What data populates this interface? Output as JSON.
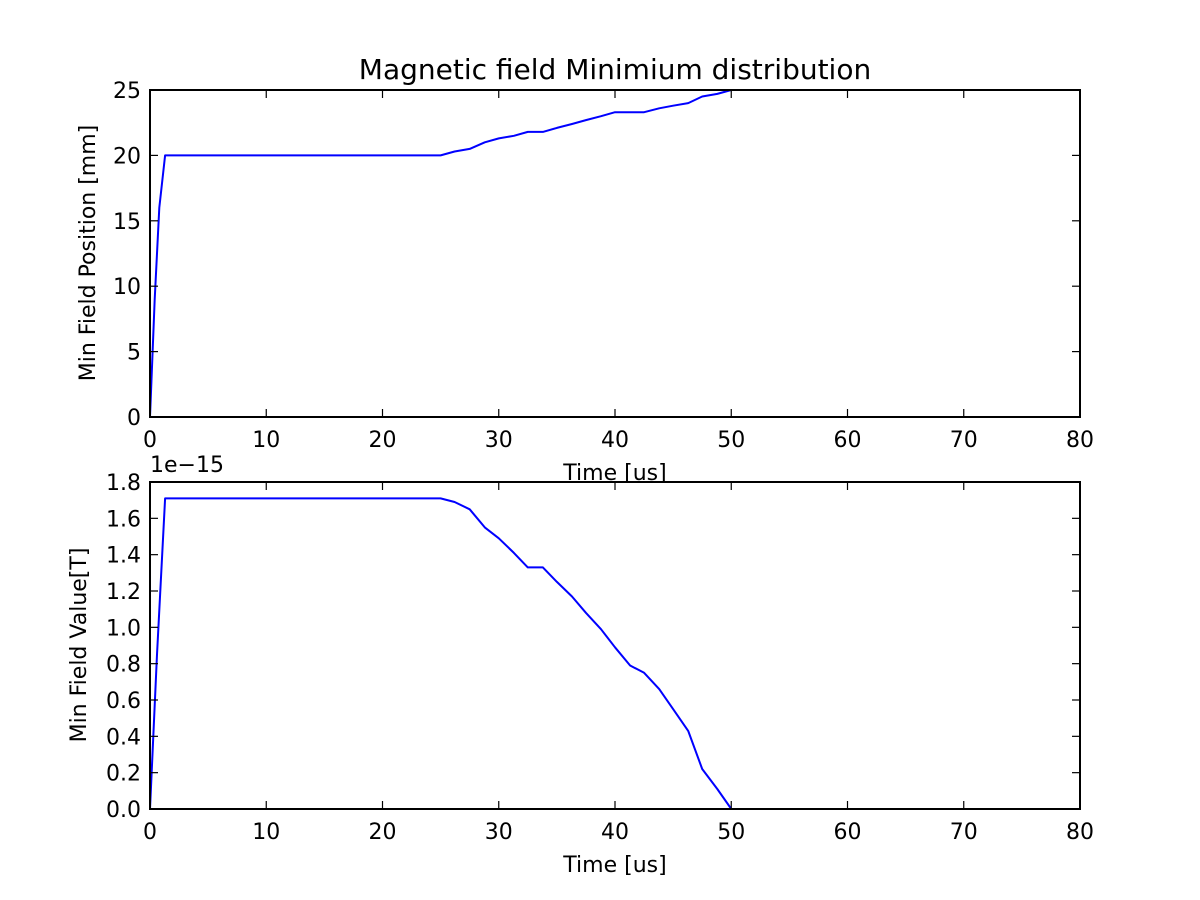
{
  "figure": {
    "title": "Magnetic field Minimium distribution"
  },
  "chart_data": [
    {
      "type": "line",
      "title": "Magnetic field Minimium distribution",
      "xlabel": "Time [us]",
      "ylabel": "Min Field Position [mm]",
      "xlim": [
        0,
        80
      ],
      "ylim": [
        0,
        25
      ],
      "xticks": [
        "0",
        "10",
        "20",
        "30",
        "40",
        "50",
        "60",
        "70",
        "80"
      ],
      "yticks": [
        "0",
        "5",
        "10",
        "15",
        "20",
        "25"
      ],
      "offset_text": "",
      "grid": false,
      "color": "#0000ff",
      "series": [
        {
          "x": [
            0,
            0.4,
            0.8,
            1.3,
            25.0,
            26.2,
            27.5,
            28.8,
            30.0,
            31.3,
            32.5,
            33.8,
            35.0,
            36.3,
            37.5,
            38.8,
            40.0,
            41.3,
            42.5,
            43.8,
            45.0,
            46.3,
            47.5,
            48.8,
            50.0
          ],
          "y": [
            0,
            9.0,
            16.0,
            20.0,
            20.0,
            20.3,
            20.5,
            21.0,
            21.3,
            21.5,
            21.8,
            21.8,
            22.1,
            22.4,
            22.7,
            23.0,
            23.3,
            23.3,
            23.3,
            23.6,
            23.8,
            24.0,
            24.5,
            24.7,
            25.0
          ]
        }
      ]
    },
    {
      "type": "line",
      "title": "",
      "xlabel": "Time [us]",
      "ylabel": "Min Field Value[T]",
      "xlim": [
        0,
        80
      ],
      "ylim": [
        0.0,
        1.8
      ],
      "xticks": [
        "0",
        "10",
        "20",
        "30",
        "40",
        "50",
        "60",
        "70",
        "80"
      ],
      "yticks": [
        "0.0",
        "0.2",
        "0.4",
        "0.6",
        "0.8",
        "1.0",
        "1.2",
        "1.4",
        "1.6",
        "1.8"
      ],
      "offset_text": "1e−15",
      "grid": false,
      "color": "#0000ff",
      "series": [
        {
          "x": [
            0,
            0.6,
            1.3,
            25.0,
            26.2,
            27.5,
            28.8,
            30.0,
            31.3,
            32.5,
            33.8,
            35.0,
            36.3,
            37.5,
            38.8,
            40.0,
            41.3,
            42.5,
            43.8,
            45.0,
            46.3,
            47.5,
            48.8,
            50.0
          ],
          "y": [
            0,
            0.85,
            1.71,
            1.71,
            1.69,
            1.65,
            1.55,
            1.49,
            1.41,
            1.33,
            1.33,
            1.25,
            1.17,
            1.08,
            0.99,
            0.89,
            0.79,
            0.75,
            0.66,
            0.55,
            0.43,
            0.22,
            0.11,
            0.0
          ]
        }
      ]
    }
  ]
}
